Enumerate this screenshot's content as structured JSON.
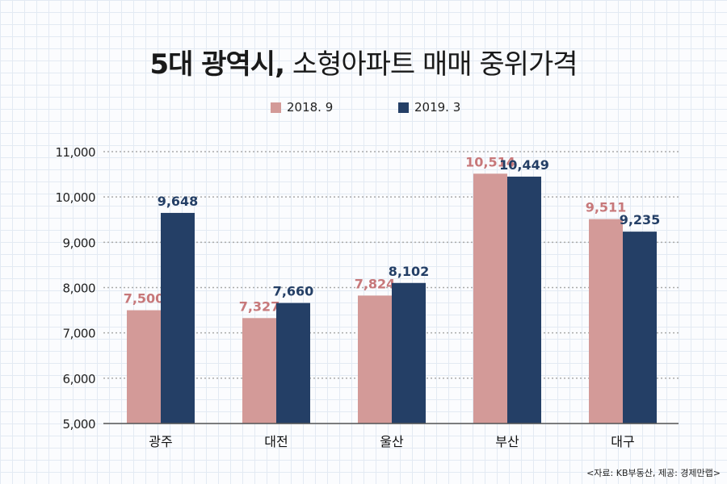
{
  "title_bold": "5대 광역시,",
  "title_rest": "소형아파트 매매 중위가격",
  "source": "<자료: KB부동산, 제공: 경제만랩>",
  "chart_data": {
    "type": "bar",
    "title": "5대 광역시, 소형아파트 매매 중위가격",
    "categories": [
      "광주",
      "대전",
      "울산",
      "부산",
      "대구"
    ],
    "series": [
      {
        "name": "2018. 9",
        "color": "#d39a98",
        "label_color": "#c7787a",
        "values": [
          7500,
          7327,
          7824,
          10514,
          9511
        ]
      },
      {
        "name": "2019. 3",
        "color": "#243f66",
        "label_color": "#243f66",
        "values": [
          9648,
          7660,
          8102,
          10449,
          9235
        ]
      }
    ],
    "yticks": [
      5000,
      6000,
      7000,
      8000,
      9000,
      10000,
      11000
    ],
    "ytick_labels": [
      "5,000",
      "6,000",
      "7,000",
      "8,000",
      "9,000",
      "10,000",
      "11,000"
    ],
    "ylim": [
      5000,
      11000
    ],
    "grid": true,
    "legend": "top-center"
  }
}
